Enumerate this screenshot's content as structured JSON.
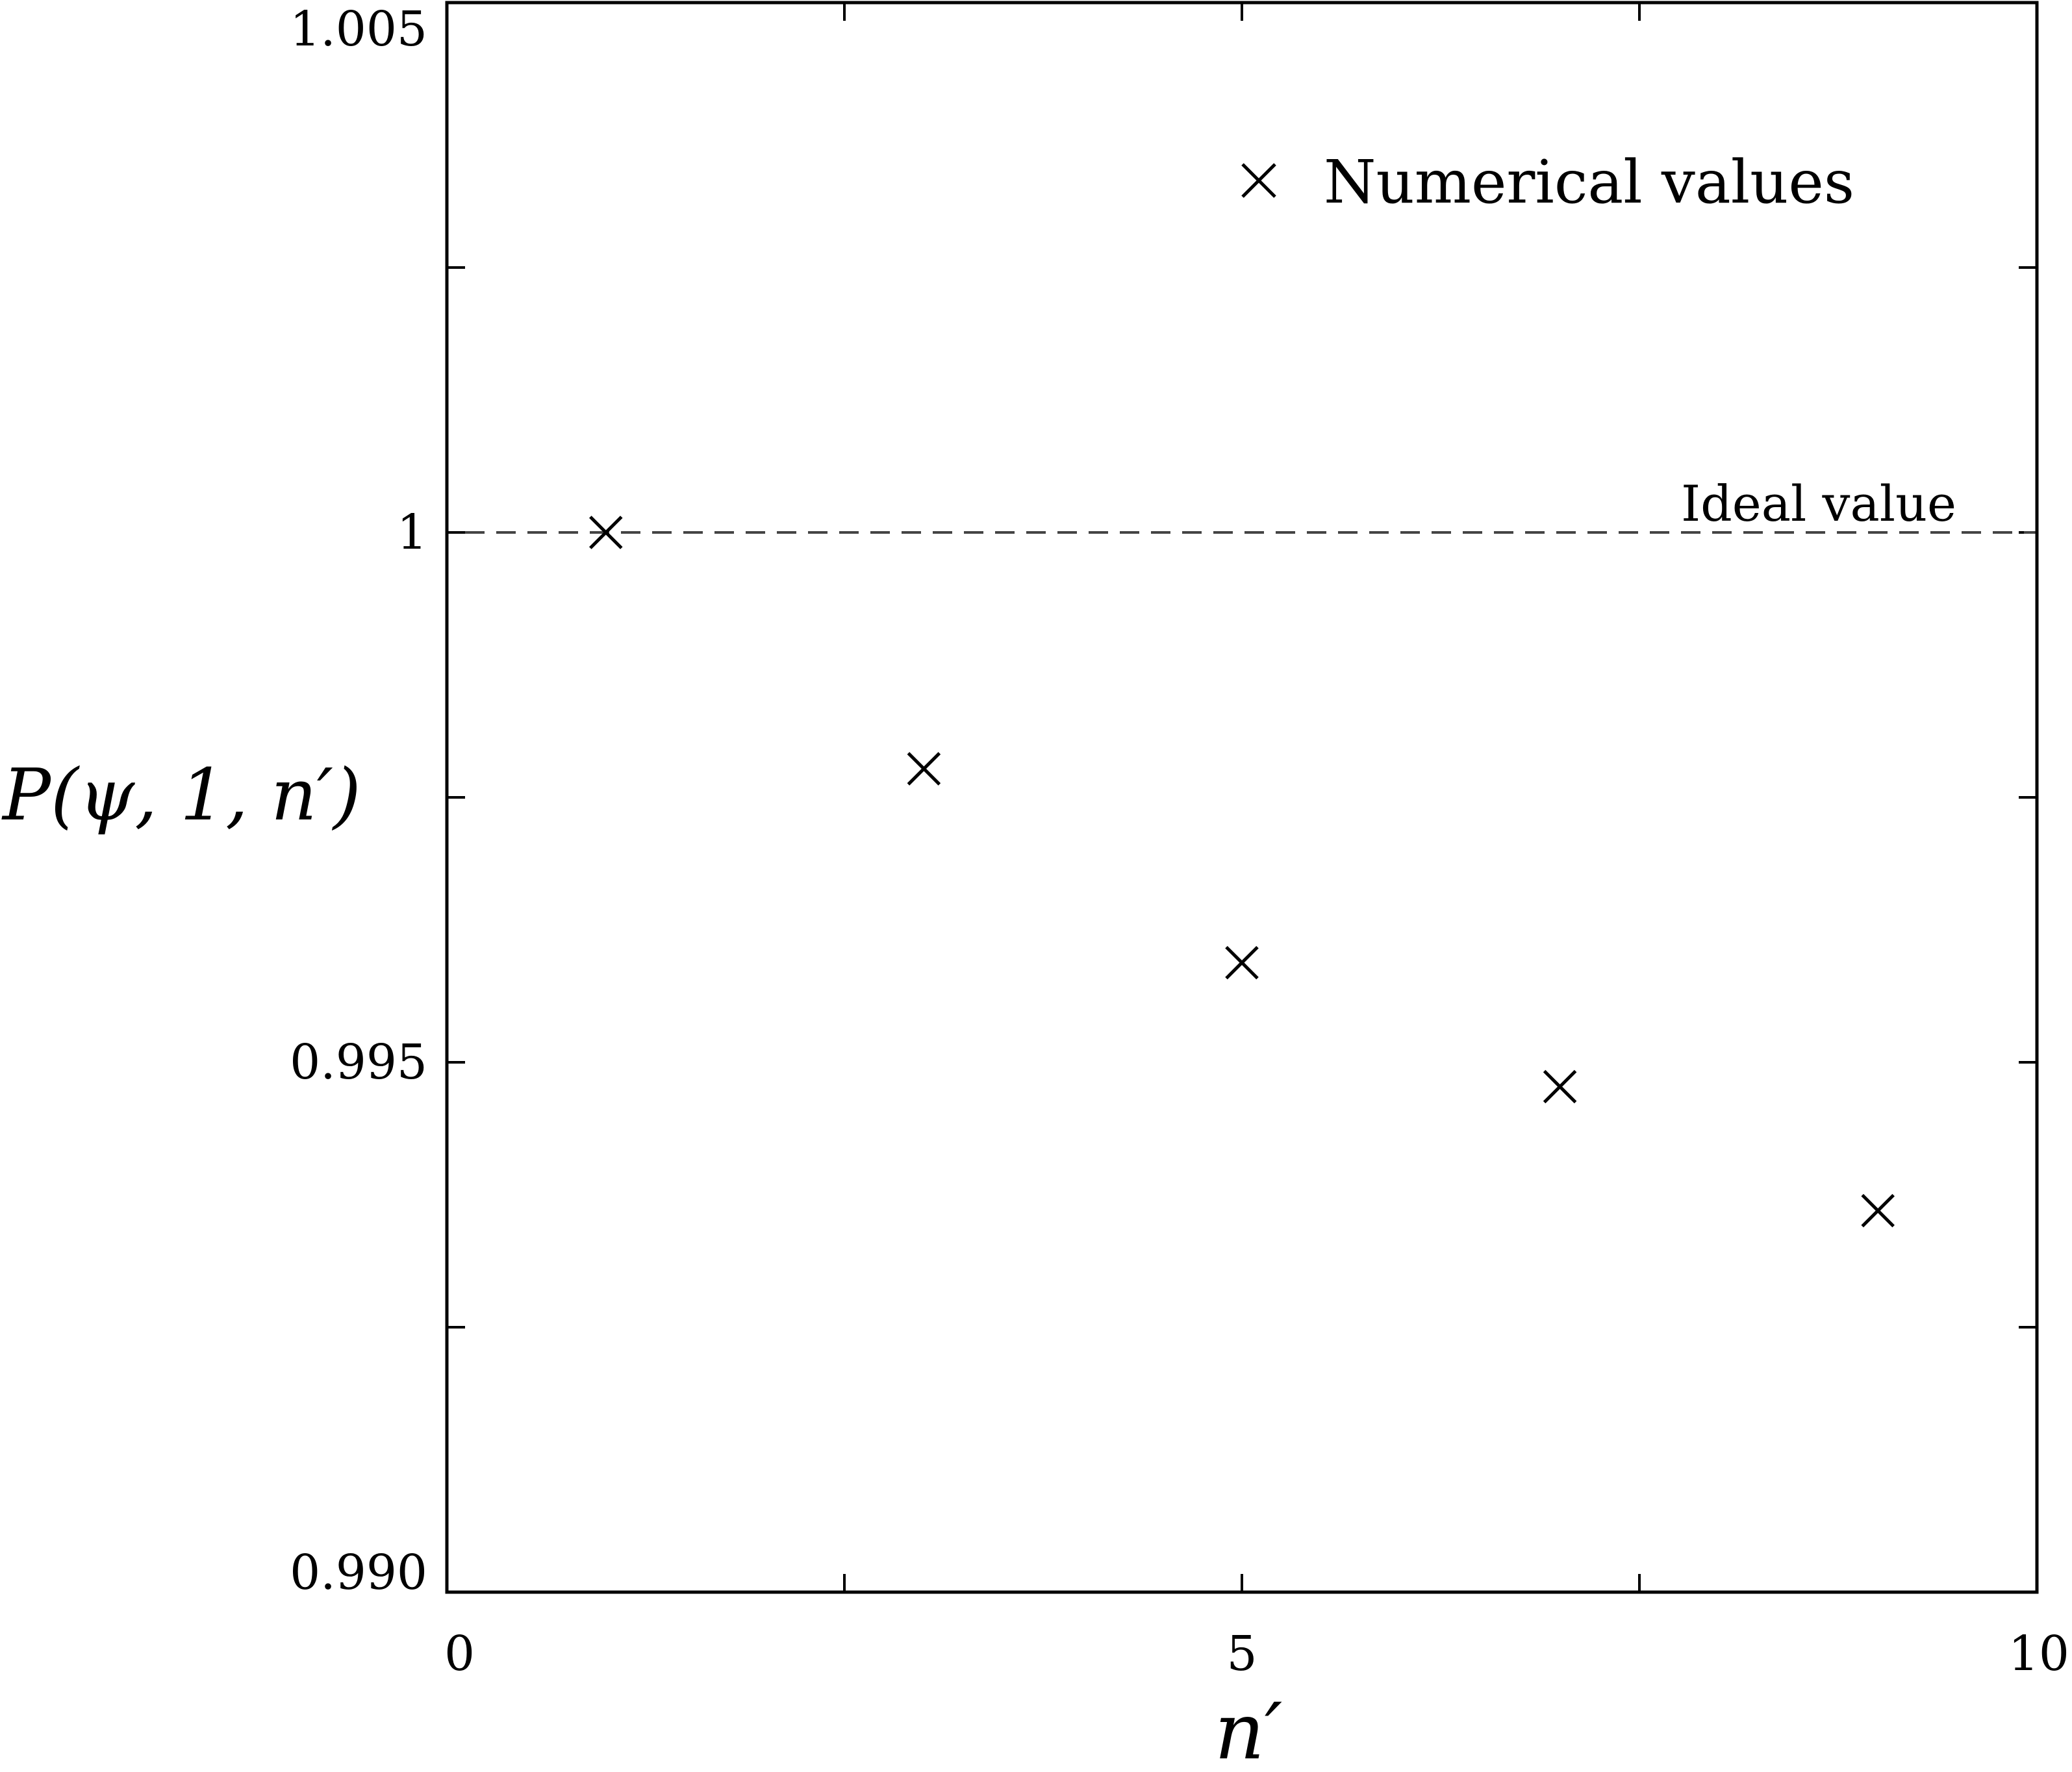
{
  "chart_data": {
    "type": "scatter",
    "xlabel": "n′",
    "ylabel": "P(ψ, 1, n′)",
    "xlim": [
      0,
      10
    ],
    "ylim": [
      0.99,
      1.005
    ],
    "x_ticks": [
      {
        "value": 0,
        "label": "0"
      },
      {
        "value": 2.5,
        "label": ""
      },
      {
        "value": 5,
        "label": "5"
      },
      {
        "value": 7.5,
        "label": ""
      },
      {
        "value": 10,
        "label": "10"
      }
    ],
    "y_ticks": [
      {
        "value": 0.99,
        "label": "0.990"
      },
      {
        "value": 0.9925,
        "label": ""
      },
      {
        "value": 0.995,
        "label": "0.995"
      },
      {
        "value": 0.9975,
        "label": ""
      },
      {
        "value": 1.0,
        "label": "1"
      },
      {
        "value": 1.0025,
        "label": ""
      },
      {
        "value": 1.005,
        "label": "1.005"
      }
    ],
    "series": [
      {
        "name": "Numerical values",
        "marker": "x",
        "color": "#000000",
        "x": [
          1,
          3,
          5,
          7,
          9
        ],
        "y": [
          1.0,
          0.99777,
          0.99594,
          0.99477,
          0.9936
        ]
      }
    ],
    "reference_line": {
      "y": 1.0,
      "label": "Ideal value",
      "style": "dashed",
      "color": "#444444"
    },
    "legend_position": "top-right",
    "grid": false
  }
}
